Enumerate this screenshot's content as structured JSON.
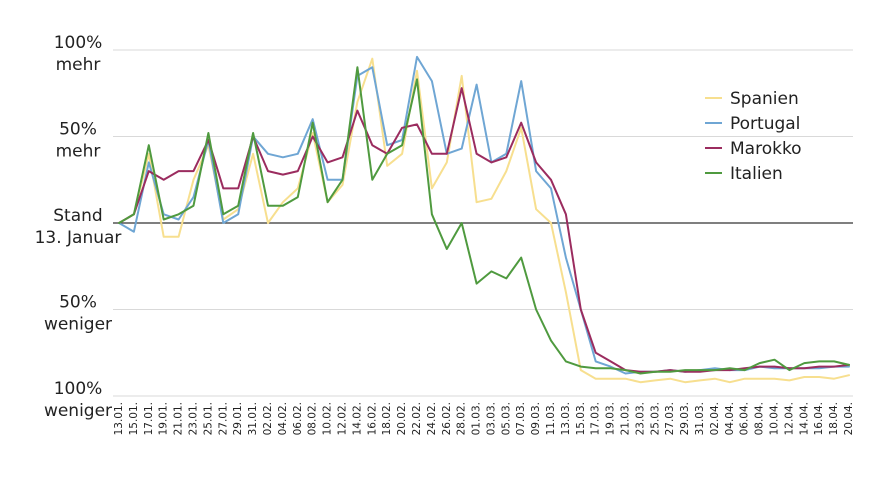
{
  "chart_data": {
    "type": "line",
    "title": "",
    "xlabel": "",
    "ylabel": "",
    "ylim": [
      -100,
      100
    ],
    "grid": "horizontal",
    "legend_position": "right",
    "y_ticks": [
      {
        "value": 100,
        "lines": [
          "100%",
          "mehr"
        ]
      },
      {
        "value": 50,
        "lines": [
          "50%",
          "mehr"
        ]
      },
      {
        "value": 0,
        "lines": [
          "Stand",
          "13. Januar"
        ]
      },
      {
        "value": -50,
        "lines": [
          "50%",
          "weniger"
        ]
      },
      {
        "value": -100,
        "lines": [
          "100%",
          "weniger"
        ]
      }
    ],
    "x": [
      "13.01.",
      "15.01.",
      "17.01.",
      "19.01.",
      "21.01.",
      "23.01.",
      "25.01.",
      "27.01.",
      "29.01.",
      "31.01.",
      "02.02.",
      "04.02.",
      "06.02.",
      "08.02.",
      "10.02.",
      "12.02.",
      "14.02.",
      "16.02.",
      "18.02.",
      "20.02.",
      "22.02.",
      "24.02.",
      "26.02.",
      "28.02.",
      "01.03.",
      "03.03.",
      "05.03.",
      "07.03.",
      "09.03.",
      "11.03.",
      "13.03.",
      "15.03.",
      "17.03.",
      "19.03.",
      "21.03.",
      "23.03.",
      "25.03.",
      "27.03.",
      "29.03.",
      "31.03.",
      "02.04.",
      "04.04.",
      "06.04.",
      "08.04.",
      "10.04.",
      "12.04.",
      "14.04.",
      "16.04.",
      "18.04.",
      "20.04."
    ],
    "series": [
      {
        "name": "Spanien",
        "color": "#f7df8f",
        "values": [
          0,
          5,
          40,
          -8,
          -8,
          25,
          45,
          2,
          8,
          40,
          0,
          12,
          20,
          52,
          12,
          22,
          70,
          95,
          33,
          40,
          88,
          20,
          35,
          85,
          12,
          14,
          30,
          55,
          8,
          0,
          -40,
          -85,
          -90,
          -90,
          -90,
          -92,
          -91,
          -90,
          -92,
          -91,
          -90,
          -92,
          -90,
          -90,
          -90,
          -91,
          -89,
          -89,
          -90,
          -88
        ]
      },
      {
        "name": "Portugal",
        "color": "#6fa6d4",
        "values": [
          0,
          -5,
          35,
          5,
          2,
          15,
          48,
          0,
          5,
          50,
          40,
          38,
          40,
          60,
          25,
          25,
          85,
          90,
          45,
          48,
          96,
          82,
          40,
          43,
          80,
          35,
          40,
          82,
          30,
          20,
          -20,
          -50,
          -80,
          -83,
          -87,
          -86,
          -86,
          -85,
          -86,
          -85,
          -84,
          -85,
          -85,
          -83,
          -84,
          -84,
          -84,
          -84,
          -83,
          -83
        ]
      },
      {
        "name": "Marokko",
        "color": "#9b2c5f",
        "values": [
          0,
          5,
          30,
          25,
          30,
          30,
          48,
          20,
          20,
          50,
          30,
          28,
          30,
          50,
          35,
          38,
          65,
          45,
          40,
          55,
          57,
          40,
          40,
          78,
          40,
          35,
          38,
          58,
          35,
          25,
          5,
          -50,
          -75,
          -80,
          -85,
          -86,
          -86,
          -85,
          -86,
          -86,
          -85,
          -85,
          -84,
          -83,
          -83,
          -84,
          -84,
          -83,
          -83,
          -82
        ]
      },
      {
        "name": "Italien",
        "color": "#4f9a3f",
        "values": [
          0,
          5,
          45,
          2,
          5,
          10,
          52,
          5,
          10,
          52,
          10,
          10,
          15,
          58,
          12,
          25,
          90,
          25,
          40,
          45,
          83,
          5,
          -15,
          0,
          -35,
          -28,
          -32,
          -20,
          -50,
          -68,
          -80,
          -83,
          -84,
          -84,
          -85,
          -87,
          -86,
          -86,
          -85,
          -85,
          -85,
          -84,
          -85,
          -81,
          -79,
          -85,
          -81,
          -80,
          -80,
          -82
        ]
      }
    ]
  }
}
